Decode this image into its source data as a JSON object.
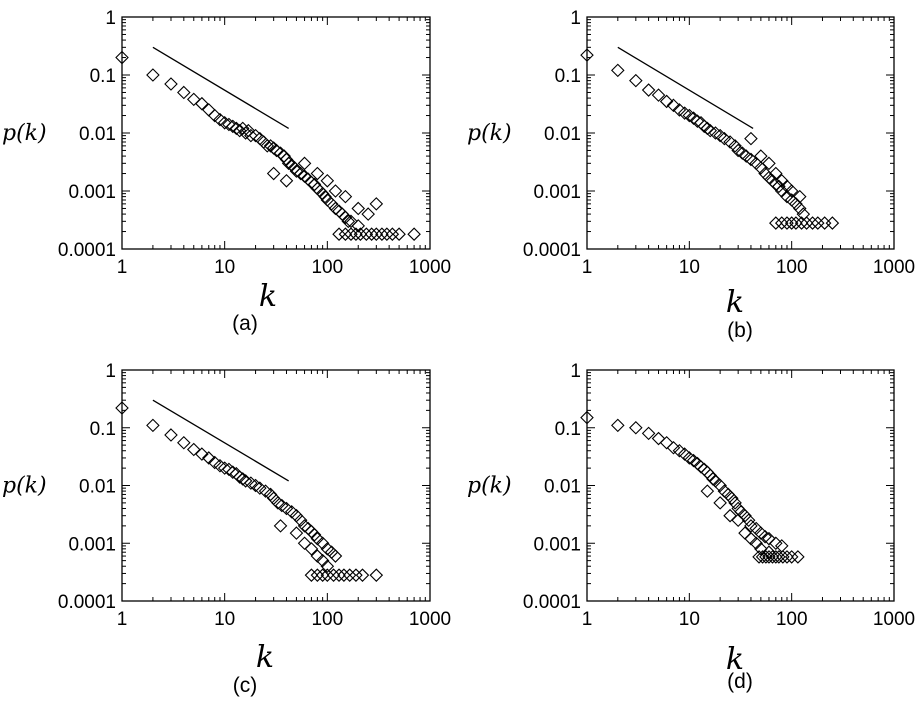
{
  "figure_labels": [
    "(a)",
    "(b)",
    "(c)",
    "(d)"
  ],
  "chart_data": [
    {
      "type": "scatter",
      "panel": "(a)",
      "xlabel": "k",
      "ylabel": "p(k)",
      "xscale": "log",
      "yscale": "log",
      "xlim": [
        1,
        1000
      ],
      "ylim": [
        0.0001,
        1
      ],
      "xticks": [
        "1",
        "10",
        "100",
        "1000"
      ],
      "yticks": [
        "1",
        "0.1",
        "0.01",
        "0.001",
        "0.0001"
      ],
      "marker": "diamond",
      "grid": false,
      "legend": "none",
      "reference_line": {
        "x": [
          2,
          42
        ],
        "y": [
          0.3,
          0.012
        ]
      },
      "points": [
        [
          1,
          0.2
        ],
        [
          2,
          0.1
        ],
        [
          3,
          0.07
        ],
        [
          4,
          0.05
        ],
        [
          5,
          0.038
        ],
        [
          6,
          0.032
        ],
        [
          7,
          0.025
        ],
        [
          8,
          0.02
        ],
        [
          9,
          0.017
        ],
        [
          10,
          0.015
        ],
        [
          11,
          0.014
        ],
        [
          12,
          0.013
        ],
        [
          13,
          0.012
        ],
        [
          14,
          0.011
        ],
        [
          15,
          0.012
        ],
        [
          16,
          0.01
        ],
        [
          17,
          0.011
        ],
        [
          18,
          0.009
        ],
        [
          20,
          0.009
        ],
        [
          22,
          0.008
        ],
        [
          24,
          0.007
        ],
        [
          26,
          0.006
        ],
        [
          28,
          0.006
        ],
        [
          30,
          0.0055
        ],
        [
          32,
          0.005
        ],
        [
          35,
          0.0045
        ],
        [
          38,
          0.004
        ],
        [
          40,
          0.0035
        ],
        [
          42,
          0.003
        ],
        [
          45,
          0.0028
        ],
        [
          48,
          0.0025
        ],
        [
          50,
          0.0022
        ],
        [
          55,
          0.002
        ],
        [
          60,
          0.0018
        ],
        [
          65,
          0.0016
        ],
        [
          70,
          0.0014
        ],
        [
          75,
          0.0013
        ],
        [
          80,
          0.0011
        ],
        [
          85,
          0.001
        ],
        [
          90,
          0.0009
        ],
        [
          95,
          0.0008
        ],
        [
          100,
          0.0007
        ],
        [
          110,
          0.0006
        ],
        [
          120,
          0.0005
        ],
        [
          130,
          0.00045
        ],
        [
          140,
          0.0004
        ],
        [
          150,
          0.00035
        ],
        [
          160,
          0.0003
        ],
        [
          170,
          0.0003
        ],
        [
          200,
          0.00025
        ],
        [
          250,
          0.0004
        ],
        [
          300,
          0.0006
        ],
        [
          30,
          0.002
        ],
        [
          40,
          0.0015
        ],
        [
          60,
          0.003
        ],
        [
          80,
          0.002
        ],
        [
          100,
          0.0015
        ],
        [
          120,
          0.001
        ],
        [
          150,
          0.0008
        ],
        [
          200,
          0.0005
        ],
        [
          130,
          0.00018
        ],
        [
          150,
          0.00018
        ],
        [
          170,
          0.00018
        ],
        [
          190,
          0.00018
        ],
        [
          210,
          0.00018
        ],
        [
          240,
          0.00018
        ],
        [
          270,
          0.00018
        ],
        [
          300,
          0.00018
        ],
        [
          340,
          0.00018
        ],
        [
          380,
          0.00018
        ],
        [
          430,
          0.00018
        ],
        [
          500,
          0.00018
        ],
        [
          700,
          0.00018
        ]
      ]
    },
    {
      "type": "scatter",
      "panel": "(b)",
      "xlabel": "k",
      "ylabel": "p(k)",
      "xscale": "log",
      "yscale": "log",
      "xlim": [
        1,
        1000
      ],
      "ylim": [
        0.0001,
        1
      ],
      "xticks": [
        "1",
        "10",
        "100",
        "1000"
      ],
      "yticks": [
        "1",
        "0.1",
        "0.01",
        "0.001",
        "0.0001"
      ],
      "marker": "diamond",
      "grid": false,
      "legend": "none",
      "reference_line": {
        "x": [
          2,
          42
        ],
        "y": [
          0.3,
          0.012
        ]
      },
      "points": [
        [
          1,
          0.22
        ],
        [
          2,
          0.12
        ],
        [
          3,
          0.08
        ],
        [
          4,
          0.055
        ],
        [
          5,
          0.045
        ],
        [
          6,
          0.035
        ],
        [
          7,
          0.03
        ],
        [
          8,
          0.025
        ],
        [
          9,
          0.022
        ],
        [
          10,
          0.02
        ],
        [
          11,
          0.018
        ],
        [
          12,
          0.016
        ],
        [
          13,
          0.015
        ],
        [
          14,
          0.013
        ],
        [
          15,
          0.012
        ],
        [
          16,
          0.011
        ],
        [
          18,
          0.01
        ],
        [
          20,
          0.009
        ],
        [
          22,
          0.008
        ],
        [
          25,
          0.007
        ],
        [
          28,
          0.006
        ],
        [
          30,
          0.005
        ],
        [
          33,
          0.0045
        ],
        [
          36,
          0.004
        ],
        [
          40,
          0.0035
        ],
        [
          45,
          0.003
        ],
        [
          50,
          0.0025
        ],
        [
          55,
          0.002
        ],
        [
          60,
          0.0017
        ],
        [
          65,
          0.0015
        ],
        [
          70,
          0.0013
        ],
        [
          75,
          0.0012
        ],
        [
          80,
          0.001
        ],
        [
          90,
          0.0008
        ],
        [
          100,
          0.0007
        ],
        [
          110,
          0.0006
        ],
        [
          120,
          0.0005
        ],
        [
          130,
          0.0004
        ],
        [
          40,
          0.008
        ],
        [
          50,
          0.004
        ],
        [
          60,
          0.003
        ],
        [
          70,
          0.002
        ],
        [
          80,
          0.0015
        ],
        [
          90,
          0.0012
        ],
        [
          100,
          0.001
        ],
        [
          120,
          0.0008
        ],
        [
          70,
          0.00028
        ],
        [
          80,
          0.00028
        ],
        [
          90,
          0.00028
        ],
        [
          100,
          0.00028
        ],
        [
          110,
          0.00028
        ],
        [
          125,
          0.00028
        ],
        [
          140,
          0.00028
        ],
        [
          160,
          0.00028
        ],
        [
          180,
          0.00028
        ],
        [
          210,
          0.00028
        ],
        [
          250,
          0.00028
        ]
      ]
    },
    {
      "type": "scatter",
      "panel": "(c)",
      "xlabel": "k",
      "ylabel": "p(k)",
      "xscale": "log",
      "yscale": "log",
      "xlim": [
        1,
        1000
      ],
      "ylim": [
        0.0001,
        1
      ],
      "xticks": [
        "1",
        "10",
        "100",
        "1000"
      ],
      "yticks": [
        "1",
        "0.1",
        "0.01",
        "0.001",
        "0.0001"
      ],
      "marker": "diamond",
      "grid": false,
      "legend": "none",
      "reference_line": {
        "x": [
          2,
          42
        ],
        "y": [
          0.3,
          0.012
        ]
      },
      "points": [
        [
          1,
          0.22
        ],
        [
          2,
          0.11
        ],
        [
          3,
          0.075
        ],
        [
          4,
          0.055
        ],
        [
          5,
          0.042
        ],
        [
          6,
          0.035
        ],
        [
          7,
          0.03
        ],
        [
          8,
          0.025
        ],
        [
          9,
          0.022
        ],
        [
          10,
          0.02
        ],
        [
          11,
          0.019
        ],
        [
          12,
          0.017
        ],
        [
          13,
          0.016
        ],
        [
          14,
          0.014
        ],
        [
          15,
          0.013
        ],
        [
          16,
          0.012
        ],
        [
          18,
          0.011
        ],
        [
          20,
          0.01
        ],
        [
          22,
          0.009
        ],
        [
          25,
          0.008
        ],
        [
          28,
          0.007
        ],
        [
          30,
          0.006
        ],
        [
          33,
          0.005
        ],
        [
          36,
          0.0045
        ],
        [
          40,
          0.004
        ],
        [
          45,
          0.0035
        ],
        [
          50,
          0.003
        ],
        [
          55,
          0.0025
        ],
        [
          60,
          0.002
        ],
        [
          65,
          0.0018
        ],
        [
          70,
          0.0016
        ],
        [
          75,
          0.0014
        ],
        [
          80,
          0.0012
        ],
        [
          90,
          0.001
        ],
        [
          100,
          0.0008
        ],
        [
          110,
          0.0007
        ],
        [
          120,
          0.0006
        ],
        [
          35,
          0.002
        ],
        [
          50,
          0.0015
        ],
        [
          60,
          0.001
        ],
        [
          70,
          0.0008
        ],
        [
          80,
          0.0006
        ],
        [
          90,
          0.0005
        ],
        [
          100,
          0.0004
        ],
        [
          70,
          0.00028
        ],
        [
          80,
          0.00028
        ],
        [
          90,
          0.00028
        ],
        [
          100,
          0.00028
        ],
        [
          115,
          0.00028
        ],
        [
          130,
          0.00028
        ],
        [
          145,
          0.00028
        ],
        [
          165,
          0.00028
        ],
        [
          190,
          0.00028
        ],
        [
          220,
          0.00028
        ],
        [
          300,
          0.00028
        ]
      ]
    },
    {
      "type": "scatter",
      "panel": "(d)",
      "xlabel": "k",
      "ylabel": "p(k)",
      "xscale": "log",
      "yscale": "log",
      "xlim": [
        1,
        1000
      ],
      "ylim": [
        0.0001,
        1
      ],
      "xticks": [
        "1",
        "10",
        "100",
        "1000"
      ],
      "yticks": [
        "1",
        "0.1",
        "0.01",
        "0.001",
        "0.0001"
      ],
      "marker": "diamond",
      "grid": false,
      "legend": "none",
      "points": [
        [
          1,
          0.15
        ],
        [
          2,
          0.11
        ],
        [
          3,
          0.1
        ],
        [
          4,
          0.08
        ],
        [
          5,
          0.065
        ],
        [
          6,
          0.055
        ],
        [
          7,
          0.045
        ],
        [
          8,
          0.04
        ],
        [
          9,
          0.035
        ],
        [
          10,
          0.03
        ],
        [
          11,
          0.027
        ],
        [
          12,
          0.024
        ],
        [
          13,
          0.021
        ],
        [
          14,
          0.019
        ],
        [
          15,
          0.017
        ],
        [
          16,
          0.015
        ],
        [
          17,
          0.013
        ],
        [
          18,
          0.012
        ],
        [
          20,
          0.01
        ],
        [
          22,
          0.008
        ],
        [
          24,
          0.007
        ],
        [
          26,
          0.006
        ],
        [
          28,
          0.005
        ],
        [
          30,
          0.004
        ],
        [
          32,
          0.0035
        ],
        [
          35,
          0.003
        ],
        [
          38,
          0.0025
        ],
        [
          40,
          0.002
        ],
        [
          45,
          0.0018
        ],
        [
          50,
          0.0015
        ],
        [
          55,
          0.0013
        ],
        [
          60,
          0.0012
        ],
        [
          70,
          0.001
        ],
        [
          80,
          0.0009
        ],
        [
          15,
          0.008
        ],
        [
          20,
          0.005
        ],
        [
          25,
          0.003
        ],
        [
          30,
          0.0025
        ],
        [
          35,
          0.0015
        ],
        [
          40,
          0.0012
        ],
        [
          45,
          0.001
        ],
        [
          50,
          0.0008
        ],
        [
          60,
          0.0007
        ],
        [
          48,
          0.00058
        ],
        [
          52,
          0.00058
        ],
        [
          56,
          0.00058
        ],
        [
          60,
          0.00058
        ],
        [
          65,
          0.00058
        ],
        [
          70,
          0.00058
        ],
        [
          75,
          0.00058
        ],
        [
          82,
          0.00058
        ],
        [
          90,
          0.00058
        ],
        [
          100,
          0.00058
        ],
        [
          115,
          0.00058
        ]
      ]
    }
  ]
}
